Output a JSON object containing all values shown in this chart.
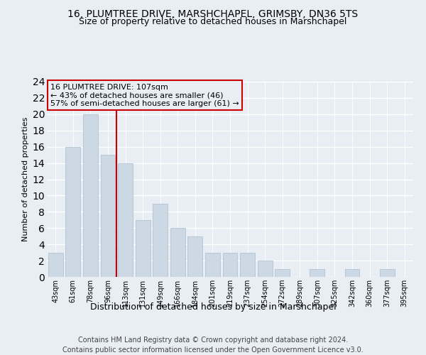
{
  "title1": "16, PLUMTREE DRIVE, MARSHCHAPEL, GRIMSBY, DN36 5TS",
  "title2": "Size of property relative to detached houses in Marshchapel",
  "xlabel": "Distribution of detached houses by size in Marshchapel",
  "ylabel": "Number of detached properties",
  "categories": [
    "43sqm",
    "61sqm",
    "78sqm",
    "96sqm",
    "113sqm",
    "131sqm",
    "149sqm",
    "166sqm",
    "184sqm",
    "201sqm",
    "219sqm",
    "237sqm",
    "254sqm",
    "272sqm",
    "289sqm",
    "307sqm",
    "325sqm",
    "342sqm",
    "360sqm",
    "377sqm",
    "395sqm"
  ],
  "values": [
    3,
    16,
    20,
    15,
    14,
    7,
    9,
    6,
    5,
    3,
    3,
    3,
    2,
    1,
    0,
    1,
    0,
    1,
    0,
    1,
    0
  ],
  "bar_color": "#ccd9e5",
  "bar_edge_color": "#aabccc",
  "vline_color": "#cc0000",
  "vline_pos": 3.5,
  "annotation_box_color": "#cc0000",
  "annotation_lines": [
    "16 PLUMTREE DRIVE: 107sqm",
    "← 43% of detached houses are smaller (46)",
    "57% of semi-detached houses are larger (61) →"
  ],
  "ylim_max": 24,
  "yticks": [
    0,
    2,
    4,
    6,
    8,
    10,
    12,
    14,
    16,
    18,
    20,
    22,
    24
  ],
  "footer1": "Contains HM Land Registry data © Crown copyright and database right 2024.",
  "footer2": "Contains public sector information licensed under the Open Government Licence v3.0.",
  "bg_color": "#e8eef4",
  "grid_color": "#ffffff",
  "title1_fontsize": 10,
  "title2_fontsize": 9,
  "tick_fontsize": 7,
  "ylabel_fontsize": 8,
  "xlabel_fontsize": 9,
  "footer_fontsize": 7,
  "ann_fontsize": 8
}
